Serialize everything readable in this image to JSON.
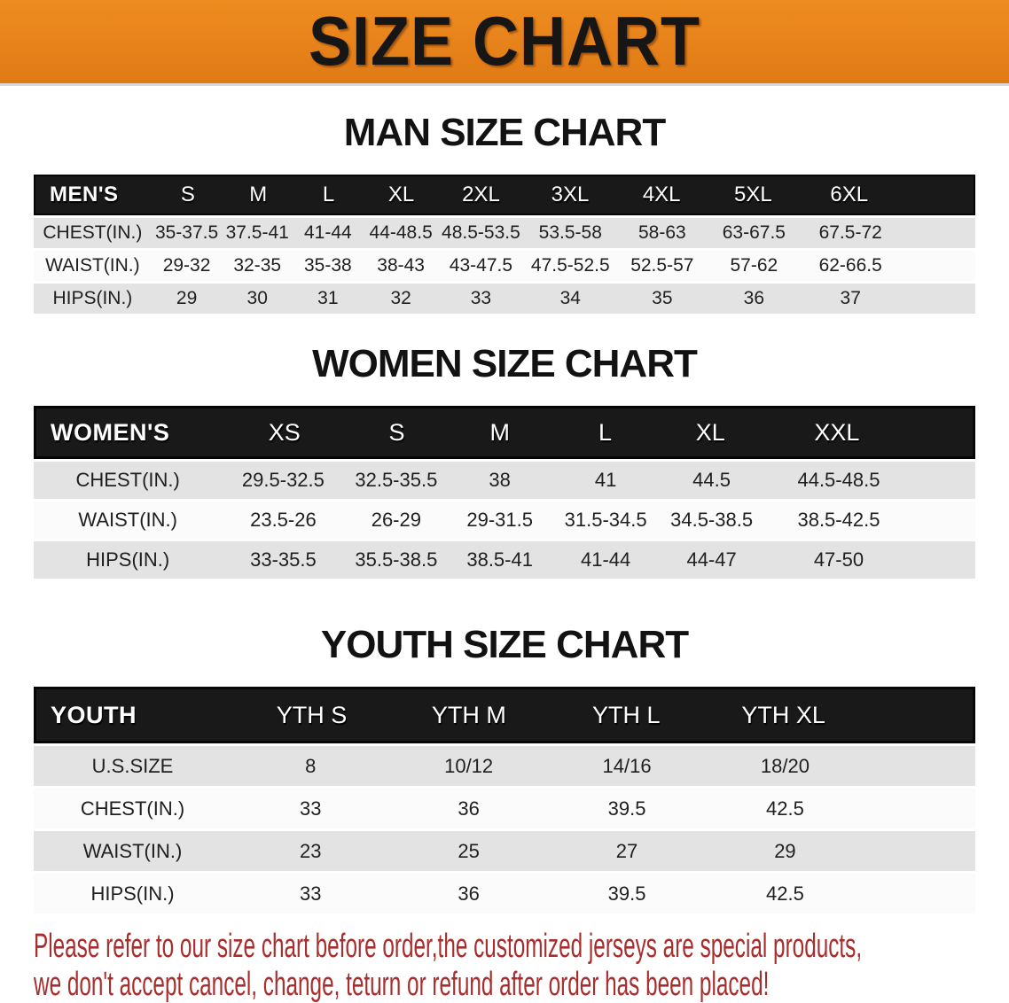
{
  "banner": {
    "title": "SIZE CHART",
    "bg_color": "#E8831D",
    "text_color": "#161616"
  },
  "sections": {
    "men": {
      "title": "MAN SIZE CHART",
      "header": {
        "label": "MEN'S",
        "sizes": [
          "S",
          "M",
          "L",
          "XL",
          "2XL",
          "3XL",
          "4XL",
          "5XL",
          "6XL"
        ]
      },
      "rows": [
        {
          "label": "CHEST(IN.)",
          "values": [
            "35-37.5",
            "37.5-41",
            "41-44",
            "44-48.5",
            "48.5-53.5",
            "53.5-58",
            "58-63",
            "63-67.5",
            "67.5-72"
          ]
        },
        {
          "label": "WAIST(IN.)",
          "values": [
            "29-32",
            "32-35",
            "35-38",
            "38-43",
            "43-47.5",
            "47.5-52.5",
            "52.5-57",
            "57-62",
            "62-66.5"
          ]
        },
        {
          "label": "HIPS(IN.)",
          "values": [
            "29",
            "30",
            "31",
            "32",
            "33",
            "34",
            "35",
            "36",
            "37"
          ]
        }
      ]
    },
    "women": {
      "title": "WOMEN SIZE CHART",
      "header": {
        "label": "WOMEN'S",
        "sizes": [
          "XS",
          "S",
          "M",
          "L",
          "XL",
          "XXL"
        ]
      },
      "rows": [
        {
          "label": "CHEST(IN.)",
          "values": [
            "29.5-32.5",
            "32.5-35.5",
            "38",
            "41",
            "44.5",
            "44.5-48.5"
          ]
        },
        {
          "label": "WAIST(IN.)",
          "values": [
            "23.5-26",
            "26-29",
            "29-31.5",
            "31.5-34.5",
            "34.5-38.5",
            "38.5-42.5"
          ]
        },
        {
          "label": "HIPS(IN.)",
          "values": [
            "33-35.5",
            "35.5-38.5",
            "38.5-41",
            "41-44",
            "44-47",
            "47-50"
          ]
        }
      ]
    },
    "youth": {
      "title": "YOUTH SIZE CHART",
      "header": {
        "label": "YOUTH",
        "sizes": [
          "YTH S",
          "YTH M",
          "YTH L",
          "YTH XL"
        ]
      },
      "rows": [
        {
          "label": "U.S.SIZE",
          "values": [
            "8",
            "10/12",
            "14/16",
            "18/20"
          ]
        },
        {
          "label": "CHEST(IN.)",
          "values": [
            "33",
            "36",
            "39.5",
            "42.5"
          ]
        },
        {
          "label": "WAIST(IN.)",
          "values": [
            "23",
            "25",
            "27",
            "29"
          ]
        },
        {
          "label": "HIPS(IN.)",
          "values": [
            "33",
            "36",
            "39.5",
            "42.5"
          ]
        }
      ]
    }
  },
  "table_colors": {
    "header_band": "#191919",
    "row_gray": "#e3e3e3",
    "row_white": "#fbfbfb"
  },
  "disclaimer": {
    "line1": "Please refer to our size chart before order,the customized jerseys are special products,",
    "line2": "we don't accept cancel, change, teturn or refund after order has been placed!",
    "color": "#a82e2e"
  }
}
